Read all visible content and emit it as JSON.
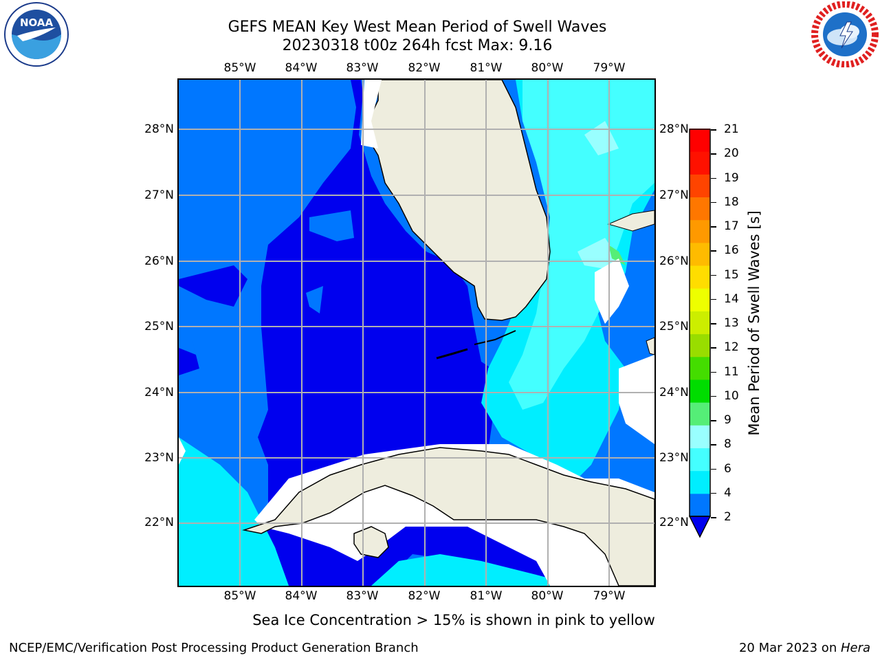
{
  "title": {
    "line1": "GEFS MEAN Key West Mean Period of Swell Waves",
    "line2": "20230318 t00z 264h fcst   Max: 9.16"
  },
  "logos": {
    "left": {
      "name": "noaa-logo",
      "text": "NOAA"
    },
    "right": {
      "name": "nws-logo",
      "text": "NATIONAL WEATHER SERVICE"
    }
  },
  "map": {
    "lon_labels": [
      "85°W",
      "84°W",
      "83°W",
      "82°W",
      "81°W",
      "80°W",
      "79°W"
    ],
    "lat_labels": [
      "28°N",
      "27°N",
      "26°N",
      "25°N",
      "24°N",
      "23°N",
      "22°N"
    ],
    "land_color": "#eeedde",
    "grid_color": "#b0b0b0"
  },
  "colorbar": {
    "label": "Mean Period of Swell Waves [s]",
    "ticks": [
      "21",
      "20",
      "19",
      "18",
      "17",
      "16",
      "15",
      "14",
      "13",
      "12",
      "11",
      "10",
      "9",
      "8",
      "6",
      "4",
      "2"
    ],
    "colors": [
      "#0000ee",
      "#0077ff",
      "#00eeff",
      "#44ffff",
      "#99ffff",
      "#55ee77",
      "#00dd00",
      "#44dd00",
      "#99dd00",
      "#ccee00",
      "#eeff00",
      "#ffdd00",
      "#ffbb00",
      "#ff9900",
      "#ff7700",
      "#ff4400",
      "#ff1100",
      "#ff0000"
    ]
  },
  "caption": "Sea Ice Concentration > 15% is shown in pink to yellow",
  "footer": {
    "left": "NCEP/EMC/Verification Post Processing Product Generation Branch",
    "right_prefix": "20 Mar 2023 on ",
    "right_host": "Hera"
  }
}
